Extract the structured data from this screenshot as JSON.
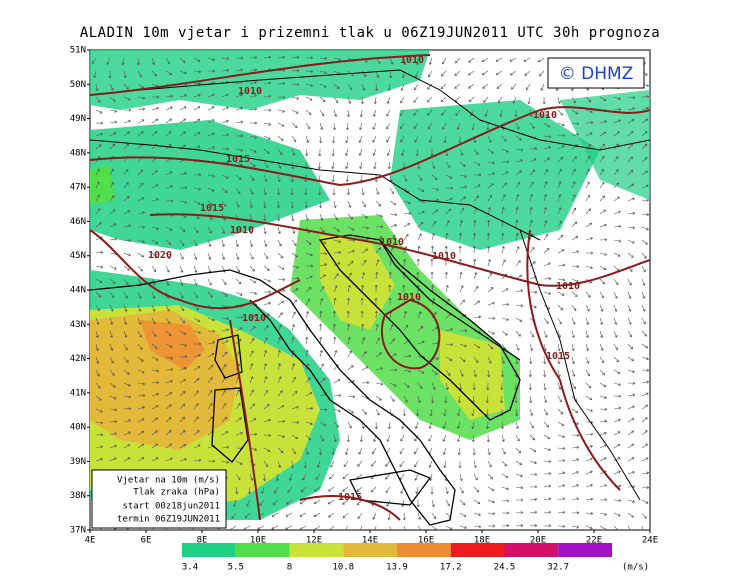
{
  "title": "ALADIN 10m vjetar i prizemni tlak u 06Z19JUN2011 UTC 30h prognoza",
  "logo": "© DHMZ",
  "lat_labels": [
    "51N",
    "50N",
    "49N",
    "48N",
    "47N",
    "46N",
    "45N",
    "44N",
    "43N",
    "42N",
    "41N",
    "40N",
    "39N",
    "38N",
    "37N"
  ],
  "lon_labels": [
    "4E",
    "6E",
    "8E",
    "10E",
    "12E",
    "14E",
    "16E",
    "18E",
    "20E",
    "22E",
    "24E"
  ],
  "isobar_labels": [
    "1010",
    "1010",
    "1010",
    "1015",
    "1015",
    "1010",
    "1020",
    "1010",
    "1010",
    "1010",
    "1010",
    "1010",
    "1015",
    "1015"
  ],
  "info": [
    "Vjetar na 10m (m/s)",
    "Tlak zraka (hPa)",
    "start 00z18jun2011",
    "termin 06Z19JUN2011"
  ],
  "colorbar": {
    "levels": [
      3.4,
      5.5,
      8,
      10.8,
      13.9,
      17.2,
      24.5,
      32.7
    ],
    "colors": [
      "#1fcf84",
      "#52dd4a",
      "#c9e23a",
      "#e3b93a",
      "#ef8b33",
      "#ec1c1c",
      "#d1106a",
      "#a20fc6"
    ],
    "unit": "(m/s)"
  }
}
